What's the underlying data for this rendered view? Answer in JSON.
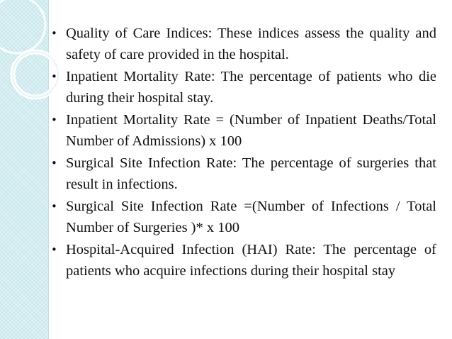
{
  "slide": {
    "bullets": [
      {
        "text": "Quality of Care Indices: These indices assess the quality and safety of care provided in the hospital."
      },
      {
        "text": "Inpatient Mortality Rate: The percentage of patients who die during their hospital stay."
      },
      {
        "text": "Inpatient Mortality Rate = (Number of Inpatient Deaths/Total Number of Admissions) x 100"
      },
      {
        "text": "Surgical Site Infection Rate: The percentage of surgeries that result in infections."
      },
      {
        "text": "Surgical Site Infection Rate =(Number of Infections / Total Number of Surgeries )* x 100"
      },
      {
        "text": "Hospital-Acquired Infection (HAI) Rate: The percentage of patients who acquire infections during their hospital stay"
      }
    ],
    "bullet_glyph": "•"
  },
  "theme": {
    "panel_color": "#dff3f6",
    "ring_color": "#ffffff",
    "text_color": "#111111"
  }
}
